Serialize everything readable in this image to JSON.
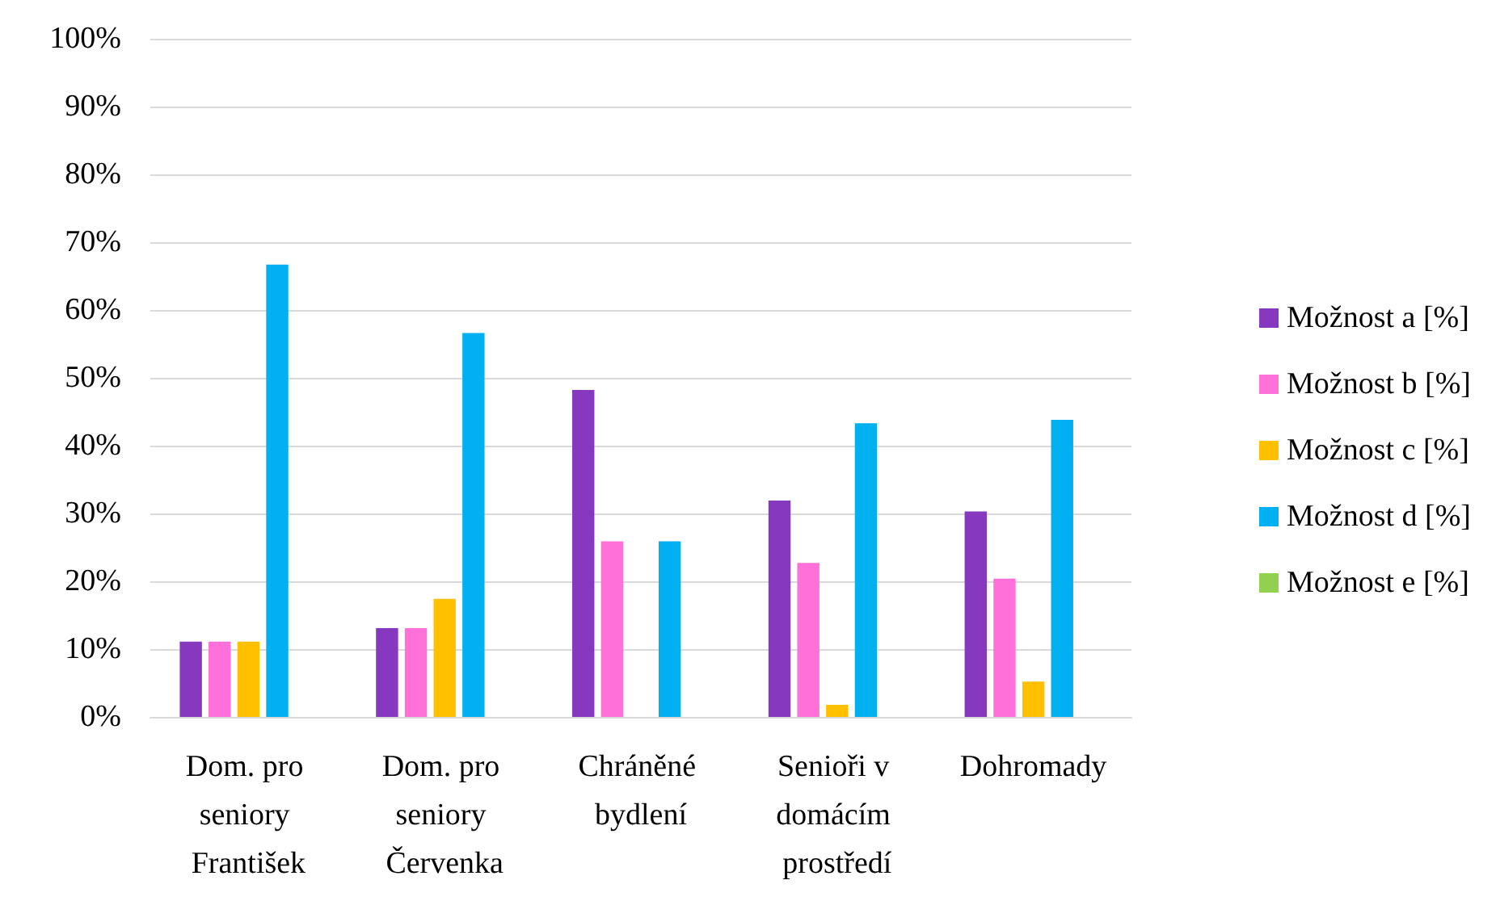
{
  "chart_data": {
    "type": "bar",
    "categories": [
      "Dom. pro seniory František",
      "Dom. pro seniory Červenka",
      "Chráněné bydlení",
      "Senioři v domácím prostředí",
      "Dohromady"
    ],
    "series": [
      {
        "name": "Možnost a [%]",
        "color": "#8639bf",
        "values": [
          11.1,
          13.1,
          48.2,
          31.9,
          30.3
        ]
      },
      {
        "name": "Možnost b [%]",
        "color": "#ff70d9",
        "values": [
          11.1,
          13.1,
          25.9,
          22.7,
          20.4
        ]
      },
      {
        "name": "Možnost c [%]",
        "color": "#ffc000",
        "values": [
          11.1,
          17.4,
          0,
          1.8,
          5.2
        ]
      },
      {
        "name": "Možnost d [%]",
        "color": "#00b0f0",
        "values": [
          66.7,
          56.6,
          25.9,
          43.3,
          43.8
        ]
      },
      {
        "name": "Možnost e [%]",
        "color": "#92d050",
        "values": [
          0,
          0,
          0,
          0,
          0
        ]
      }
    ],
    "ylim": [
      0,
      100
    ],
    "yticks": [
      {
        "value": 0,
        "label": "0%"
      },
      {
        "value": 10,
        "label": "10%"
      },
      {
        "value": 20,
        "label": "20%"
      },
      {
        "value": 30,
        "label": "30%"
      },
      {
        "value": 40,
        "label": "40%"
      },
      {
        "value": 50,
        "label": "50%"
      },
      {
        "value": 60,
        "label": "60%"
      },
      {
        "value": 70,
        "label": "70%"
      },
      {
        "value": 80,
        "label": "80%"
      },
      {
        "value": 90,
        "label": "90%"
      },
      {
        "value": 100,
        "label": "100%"
      }
    ],
    "grid": "y",
    "legend": "right"
  }
}
